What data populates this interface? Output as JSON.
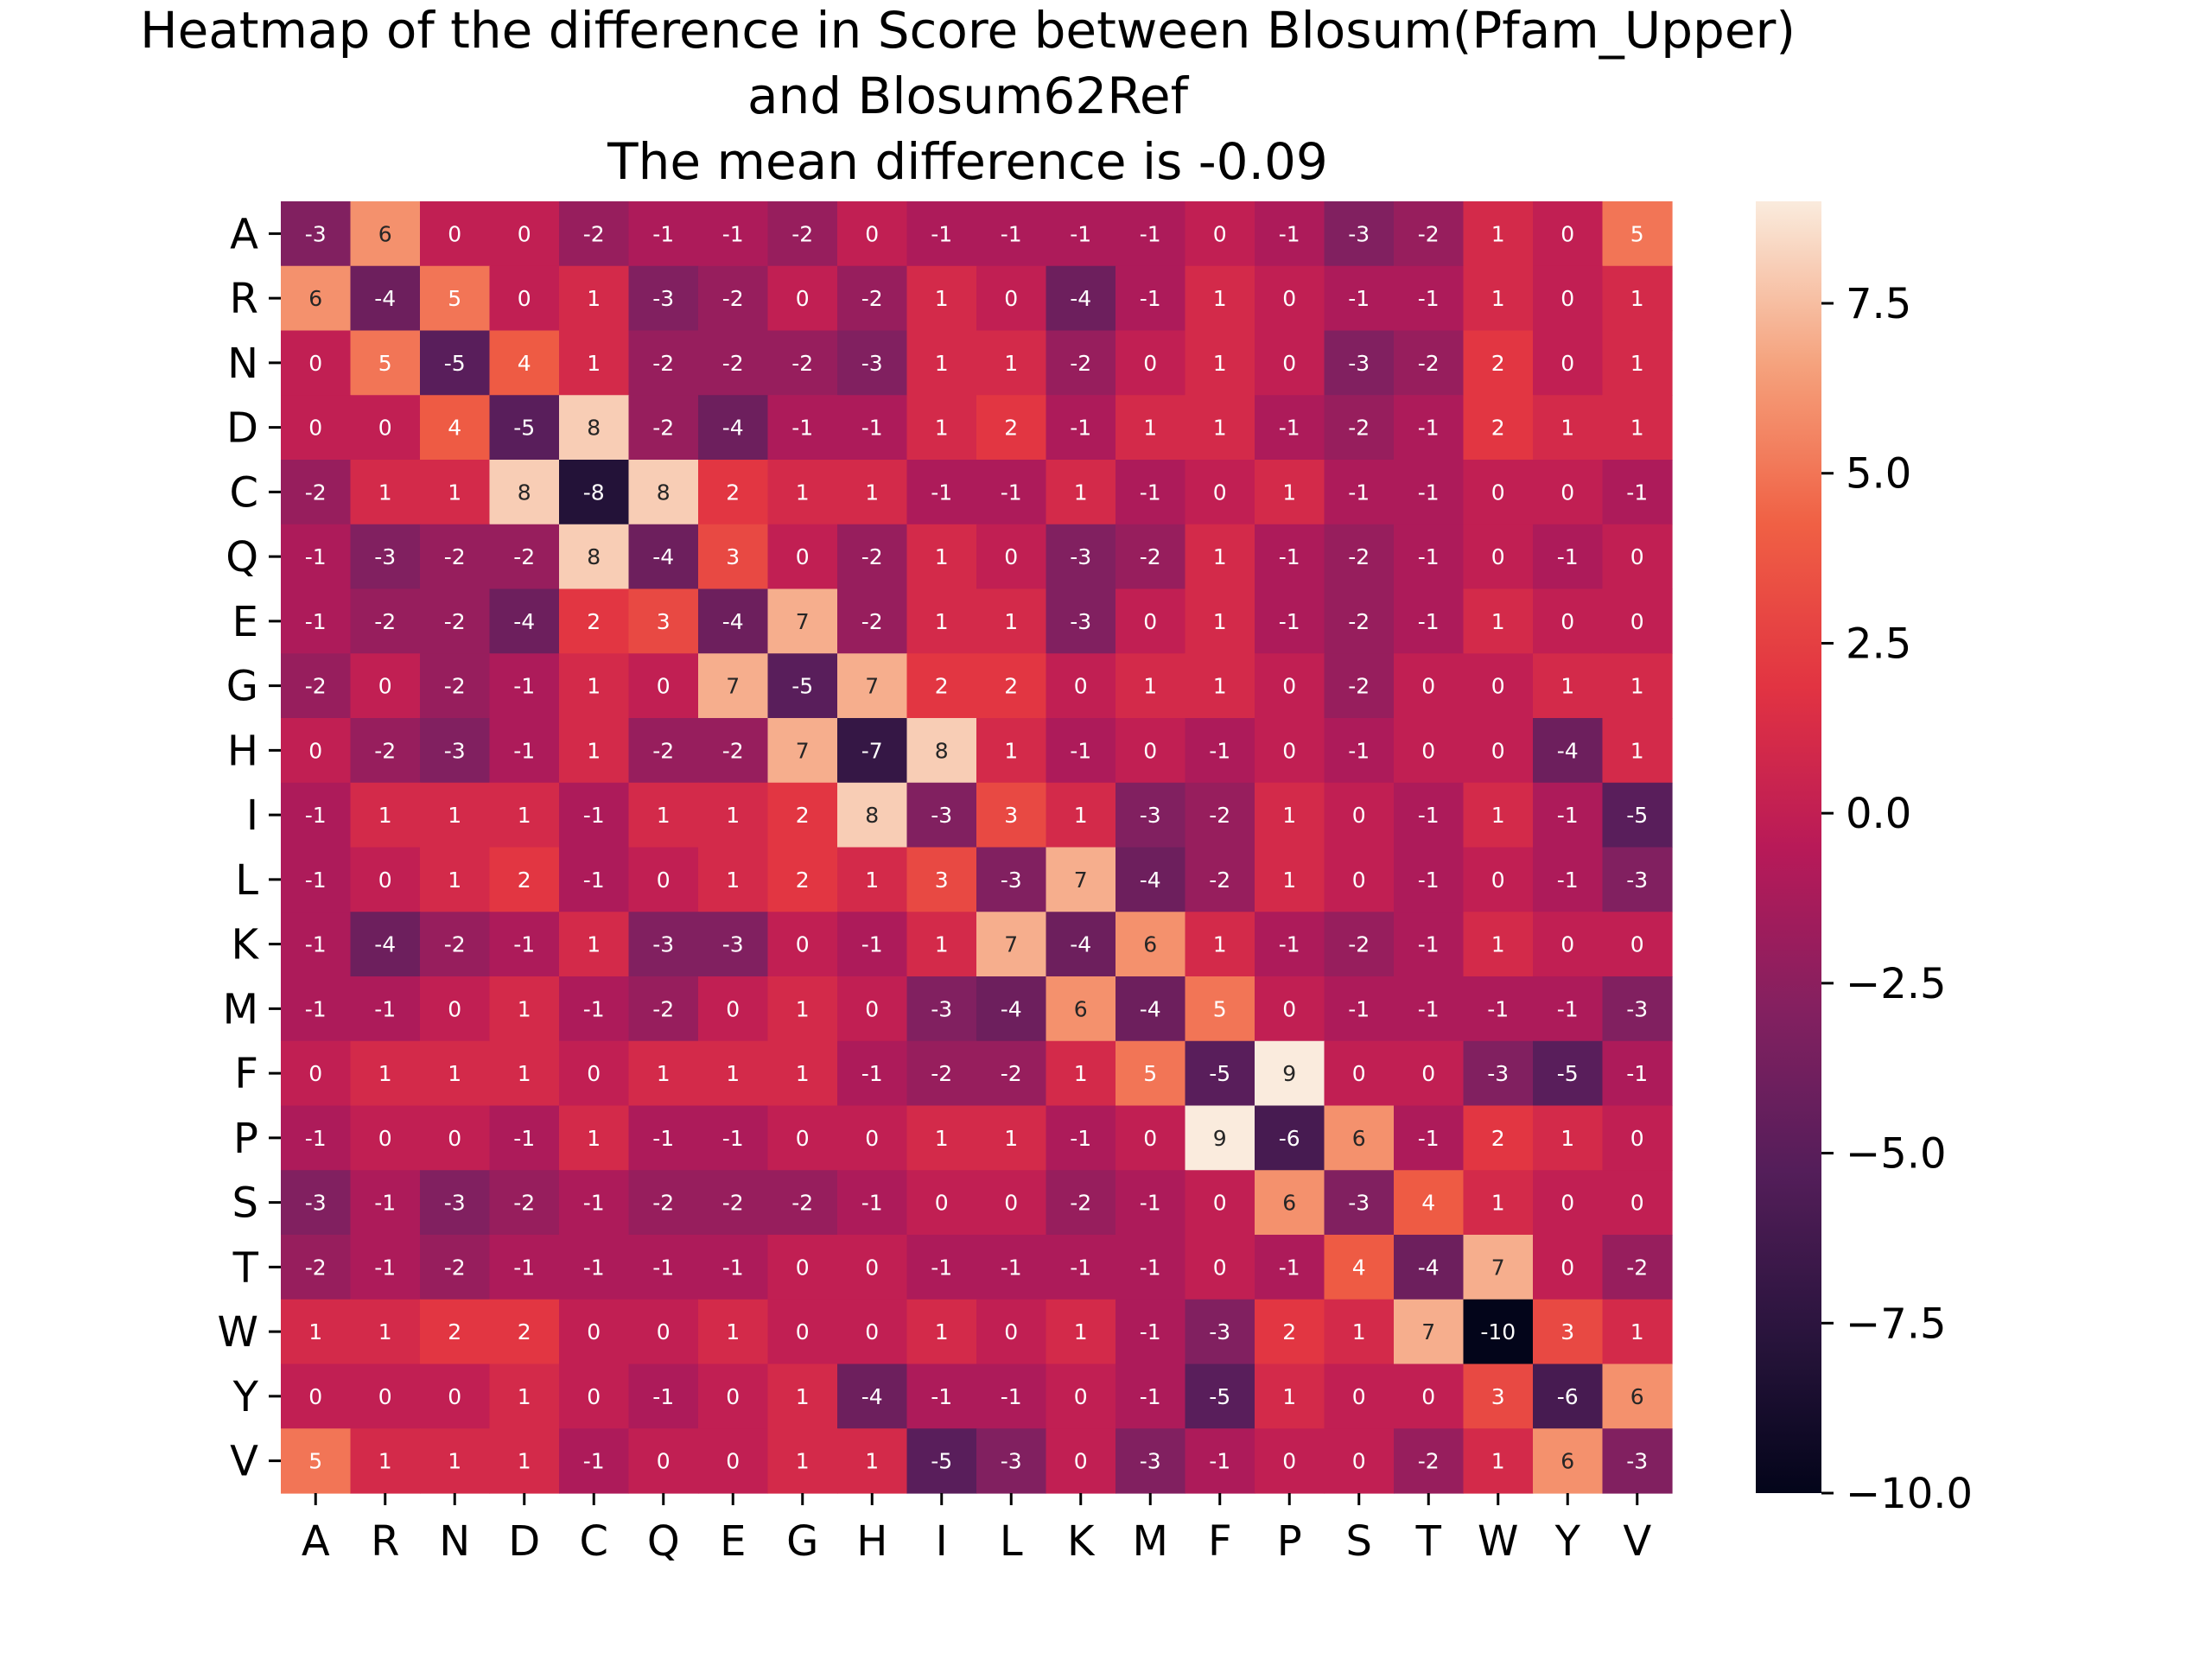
{
  "chart_data": {
    "type": "heatmap",
    "title_lines": [
      "Heatmap of the difference in Score between Blosum(Pfam_Upper)",
      "and Blosum62Ref",
      "The mean difference is -0.09"
    ],
    "xlabel": "",
    "ylabel": "",
    "x_categories": [
      "A",
      "R",
      "N",
      "D",
      "C",
      "Q",
      "E",
      "G",
      "H",
      "I",
      "L",
      "K",
      "M",
      "F",
      "P",
      "S",
      "T",
      "W",
      "Y",
      "V"
    ],
    "y_categories": [
      "A",
      "R",
      "N",
      "D",
      "C",
      "Q",
      "E",
      "G",
      "H",
      "I",
      "L",
      "K",
      "M",
      "F",
      "P",
      "S",
      "T",
      "W",
      "Y",
      "V"
    ],
    "values": [
      [
        -3,
        6,
        0,
        0,
        -2,
        -1,
        -1,
        -2,
        0,
        -1,
        -1,
        -1,
        -1,
        0,
        -1,
        -3,
        -2,
        1,
        0,
        5
      ],
      [
        6,
        -4,
        5,
        0,
        1,
        -3,
        -2,
        0,
        -2,
        1,
        0,
        -4,
        -1,
        1,
        0,
        -1,
        -1,
        1,
        0,
        1
      ],
      [
        0,
        5,
        -5,
        4,
        1,
        -2,
        -2,
        -2,
        -3,
        1,
        1,
        -2,
        0,
        1,
        0,
        -3,
        -2,
        2,
        0,
        1
      ],
      [
        0,
        0,
        4,
        -5,
        8,
        -2,
        -4,
        -1,
        -1,
        1,
        2,
        -1,
        1,
        1,
        -1,
        -2,
        -1,
        2,
        1,
        1
      ],
      [
        -2,
        1,
        1,
        8,
        -8,
        8,
        2,
        1,
        1,
        -1,
        -1,
        1,
        -1,
        0,
        1,
        -1,
        -1,
        0,
        0,
        -1
      ],
      [
        -1,
        -3,
        -2,
        -2,
        8,
        -4,
        3,
        0,
        -2,
        1,
        0,
        -3,
        -2,
        1,
        -1,
        -2,
        -1,
        0,
        -1,
        0
      ],
      [
        -1,
        -2,
        -2,
        -4,
        2,
        3,
        -4,
        7,
        -2,
        1,
        1,
        -3,
        0,
        1,
        -1,
        -2,
        -1,
        1,
        0,
        0
      ],
      [
        -2,
        0,
        -2,
        -1,
        1,
        0,
        7,
        -5,
        7,
        2,
        2,
        0,
        1,
        1,
        0,
        -2,
        0,
        0,
        1,
        1
      ],
      [
        0,
        -2,
        -3,
        -1,
        1,
        -2,
        -2,
        7,
        -7,
        8,
        1,
        -1,
        0,
        -1,
        0,
        -1,
        0,
        0,
        -4,
        1
      ],
      [
        -1,
        1,
        1,
        1,
        -1,
        1,
        1,
        2,
        8,
        -3,
        3,
        1,
        -3,
        -2,
        1,
        0,
        -1,
        1,
        -1,
        -5
      ],
      [
        -1,
        0,
        1,
        2,
        -1,
        0,
        1,
        2,
        1,
        3,
        -3,
        7,
        -4,
        -2,
        1,
        0,
        -1,
        0,
        -1,
        -3
      ],
      [
        -1,
        -4,
        -2,
        -1,
        1,
        -3,
        -3,
        0,
        -1,
        1,
        7,
        -4,
        6,
        1,
        -1,
        -2,
        -1,
        1,
        0,
        0
      ],
      [
        -1,
        -1,
        0,
        1,
        -1,
        -2,
        0,
        1,
        0,
        -3,
        -4,
        6,
        -4,
        5,
        0,
        -1,
        -1,
        -1,
        -1,
        -3
      ],
      [
        0,
        1,
        1,
        1,
        0,
        1,
        1,
        1,
        -1,
        -2,
        -2,
        1,
        5,
        -5,
        9,
        0,
        0,
        -3,
        -5,
        -1
      ],
      [
        -1,
        0,
        0,
        -1,
        1,
        -1,
        -1,
        0,
        0,
        1,
        1,
        -1,
        0,
        9,
        -6,
        6,
        -1,
        2,
        1,
        0
      ],
      [
        -3,
        -1,
        -3,
        -2,
        -1,
        -2,
        -2,
        -2,
        -1,
        0,
        0,
        -2,
        -1,
        0,
        6,
        -3,
        4,
        1,
        0,
        0
      ],
      [
        -2,
        -1,
        -2,
        -1,
        -1,
        -1,
        -1,
        0,
        0,
        -1,
        -1,
        -1,
        -1,
        0,
        -1,
        4,
        -4,
        7,
        0,
        -2
      ],
      [
        1,
        1,
        2,
        2,
        0,
        0,
        1,
        0,
        0,
        1,
        0,
        1,
        -1,
        -3,
        2,
        1,
        7,
        -10,
        3,
        1
      ],
      [
        0,
        0,
        0,
        1,
        0,
        -1,
        0,
        1,
        -4,
        -1,
        -1,
        0,
        -1,
        -5,
        1,
        0,
        0,
        3,
        -6,
        6
      ],
      [
        5,
        1,
        1,
        1,
        -1,
        0,
        0,
        1,
        1,
        -5,
        -3,
        0,
        -3,
        -1,
        0,
        0,
        -2,
        1,
        6,
        -3
      ]
    ],
    "vmin": -10,
    "vmax": 9,
    "colorbar": {
      "ticks": [
        7.5,
        5.0,
        2.5,
        0.0,
        -2.5,
        -5.0,
        -7.5,
        -10.0
      ],
      "tick_labels": [
        "7.5",
        "5.0",
        "2.5",
        "0.0",
        "−2.5",
        "−5.0",
        "−7.5",
        "−10.0"
      ]
    },
    "colormap": "rocket",
    "annotate": true
  }
}
